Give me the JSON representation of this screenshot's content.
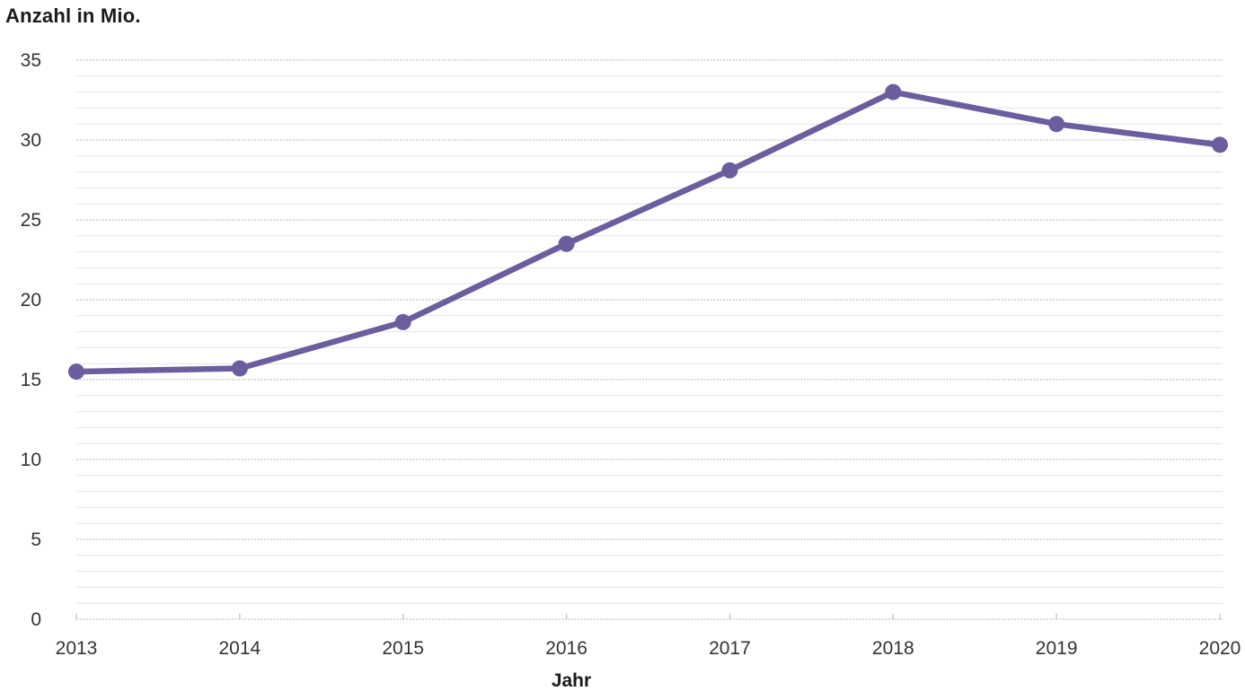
{
  "chart_data": {
    "type": "line",
    "title": "Anzahl in Mio.",
    "xlabel": "Jahr",
    "ylabel": "Anzahl in Mio.",
    "categories": [
      2013,
      2014,
      2015,
      2016,
      2017,
      2018,
      2019,
      2020
    ],
    "series": [
      {
        "name": "Anzahl in Mio.",
        "values": [
          15.5,
          15.7,
          18.6,
          23.5,
          28.1,
          33.0,
          31.0,
          29.7
        ]
      }
    ],
    "ylim": [
      0,
      35
    ],
    "y_major_step": 5,
    "y_minor_step": 1,
    "y_tick_labels": [
      "0",
      "5",
      "10",
      "15",
      "20",
      "25",
      "30",
      "35"
    ],
    "grid": "horizontal-only",
    "legend": "none",
    "line_color": "#6b5d9e",
    "marker": "circle"
  },
  "colors": {
    "line": "#6b5d9e",
    "major_gridline": "#c3c3c3",
    "minor_gridline": "#e4e4e4",
    "axis": "#c3c3c3",
    "tick": "#bdbdbd",
    "tick_label": "#333333",
    "title_text": "#1a1a1a",
    "background": "#ffffff"
  }
}
